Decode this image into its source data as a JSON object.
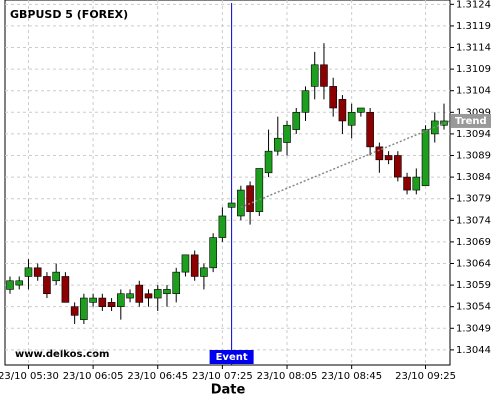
{
  "chart_data": {
    "type": "candlestick",
    "title": "GBPUSD 5 (FOREX)",
    "xlabel": "Date",
    "watermark": "www.delkos.com",
    "categories": [
      null,
      null,
      "23/10 05:30",
      null,
      null,
      null,
      null,
      null,
      null,
      "23/10 06:05",
      null,
      null,
      null,
      null,
      null,
      null,
      "23/10 06:45",
      null,
      null,
      null,
      null,
      null,
      null,
      "23/10 07:25",
      null,
      null,
      null,
      null,
      null,
      null,
      "23/10 08:05",
      null,
      null,
      null,
      null,
      null,
      null,
      "23/10 08:45",
      null,
      null,
      null,
      null,
      null,
      null,
      null,
      "23/10 09:25",
      null,
      null
    ],
    "open": [
      1.3058,
      1.3059,
      1.3061,
      1.3063,
      1.3061,
      1.306,
      1.3061,
      1.3054,
      1.3051,
      1.3055,
      1.3056,
      1.3055,
      1.3054,
      1.3056,
      1.3059,
      1.3057,
      1.3056,
      1.3057,
      1.3057,
      1.3062,
      1.3066,
      1.3061,
      1.3063,
      1.307,
      1.3077,
      1.3075,
      1.3082,
      1.3076,
      1.3085,
      1.309,
      1.3092,
      1.3095,
      1.3099,
      1.3105,
      1.311,
      1.3105,
      1.3102,
      1.3096,
      1.3099,
      1.3099,
      1.3091,
      1.3089,
      1.3089,
      1.3084,
      1.3081,
      1.3082,
      1.3094,
      1.3096
    ],
    "high": [
      1.3061,
      1.3061,
      1.3065,
      1.3064,
      1.3062,
      1.3064,
      1.3062,
      1.3055,
      1.3057,
      1.3057,
      1.3057,
      1.3056,
      1.3058,
      1.3058,
      1.306,
      1.3058,
      1.3059,
      1.3059,
      1.3063,
      1.3066,
      1.3067,
      1.3064,
      1.3071,
      1.3077,
      1.3078,
      1.3082,
      1.3083,
      1.3086,
      1.3095,
      1.3098,
      1.3097,
      1.31,
      1.3105,
      1.3113,
      1.3115,
      1.3107,
      1.3103,
      1.3101,
      1.31,
      1.31,
      1.3092,
      1.309,
      1.309,
      1.3085,
      1.3086,
      1.3096,
      1.3099,
      1.3101
    ],
    "low": [
      1.3057,
      1.3058,
      1.3058,
      1.306,
      1.3056,
      1.3059,
      1.3055,
      1.305,
      1.305,
      1.3054,
      1.3053,
      1.3053,
      1.3051,
      1.3055,
      1.3054,
      1.3054,
      1.3053,
      1.3054,
      1.3055,
      1.3061,
      1.306,
      1.3058,
      1.3062,
      1.3069,
      1.3077,
      1.3074,
      1.3073,
      1.3075,
      1.3084,
      1.3089,
      1.3089,
      1.3094,
      1.3097,
      1.3102,
      1.3102,
      1.3098,
      1.3094,
      1.3093,
      1.3098,
      1.3089,
      1.3085,
      1.3087,
      1.3083,
      1.308,
      1.308,
      1.3082,
      1.3092,
      1.3095
    ],
    "close": [
      1.306,
      1.306,
      1.3063,
      1.3061,
      1.3057,
      1.3062,
      1.3055,
      1.3052,
      1.3056,
      1.3056,
      1.3054,
      1.3054,
      1.3057,
      1.3057,
      1.3055,
      1.3056,
      1.3058,
      1.3058,
      1.3062,
      1.3066,
      1.3061,
      1.3063,
      1.307,
      1.3075,
      1.3078,
      1.3081,
      1.3076,
      1.3086,
      1.309,
      1.3093,
      1.3096,
      1.3099,
      1.3104,
      1.311,
      1.3105,
      1.31,
      1.3097,
      1.3099,
      1.31,
      1.3091,
      1.3088,
      1.3088,
      1.3084,
      1.3081,
      1.3084,
      1.3095,
      1.3097,
      1.3097
    ],
    "up_color": "#1e9e1e",
    "down_color": "#8b0000",
    "ylim": [
      1.30405,
      1.3125
    ],
    "yticks": [
      1.3044,
      1.3049,
      1.3054,
      1.3059,
      1.3064,
      1.3069,
      1.3074,
      1.3079,
      1.3084,
      1.3089,
      1.3094,
      1.3099,
      1.3104,
      1.3109,
      1.3114,
      1.3119,
      1.3124
    ],
    "grid": true,
    "trend": {
      "label": "Trend",
      "values": [
        1.3077,
        1.3097
      ]
    },
    "event": {
      "label": "Event"
    }
  }
}
